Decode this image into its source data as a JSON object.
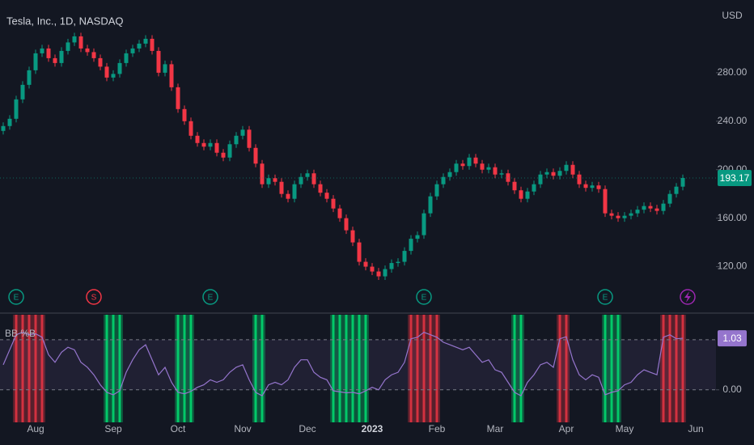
{
  "header": {
    "title": "Tesla, Inc., 1D, NASDAQ",
    "currency": "USD"
  },
  "chart_data": [
    {
      "type": "candlestick",
      "categories": [
        null,
        null,
        null,
        null,
        null,
        "Aug",
        null,
        null,
        null,
        null,
        null,
        null,
        null,
        null,
        null,
        null,
        null,
        "Sep",
        null,
        null,
        null,
        null,
        null,
        null,
        null,
        null,
        null,
        "Oct",
        null,
        null,
        null,
        null,
        null,
        null,
        null,
        null,
        null,
        "Nov",
        null,
        null,
        null,
        null,
        null,
        null,
        null,
        null,
        null,
        "Dec",
        null,
        null,
        null,
        null,
        null,
        null,
        null,
        null,
        null,
        "2023",
        null,
        null,
        null,
        null,
        null,
        null,
        null,
        null,
        null,
        "Feb",
        null,
        null,
        null,
        null,
        null,
        null,
        null,
        null,
        "Mar",
        null,
        null,
        null,
        null,
        null,
        null,
        null,
        null,
        null,
        null,
        "Apr",
        null,
        null,
        null,
        null,
        null,
        null,
        null,
        null,
        "May",
        null,
        null,
        null,
        null,
        null,
        null,
        null,
        null,
        null,
        null,
        "Jun"
      ],
      "open": [
        232,
        236,
        242,
        258,
        270,
        282,
        296,
        300,
        292,
        288,
        298,
        305,
        310,
        300,
        297,
        292,
        285,
        276,
        279,
        288,
        296,
        300,
        304,
        308,
        298,
        280,
        287,
        268,
        250,
        240,
        228,
        222,
        219,
        222,
        214,
        210,
        221,
        228,
        233,
        218,
        205,
        188,
        193,
        190,
        180,
        176,
        188,
        194,
        197,
        188,
        181,
        176,
        168,
        160,
        150,
        140,
        124,
        120,
        116,
        112,
        118,
        123,
        124,
        133,
        143,
        146,
        164,
        178,
        188,
        194,
        198,
        205,
        203,
        210,
        205,
        200,
        202,
        196,
        197,
        190,
        183,
        176,
        182,
        188,
        196,
        198,
        195,
        199,
        204,
        196,
        188,
        185,
        187,
        184,
        164,
        162,
        160,
        162,
        164,
        167,
        170,
        168,
        166,
        172,
        180,
        186,
        null,
        null
      ],
      "high": [
        239,
        245,
        261,
        273,
        285,
        299,
        303,
        303,
        295,
        301,
        308,
        313,
        313,
        303,
        300,
        295,
        288,
        282,
        291,
        299,
        303,
        307,
        311,
        311,
        301,
        290,
        290,
        271,
        253,
        243,
        231,
        225,
        225,
        225,
        217,
        224,
        231,
        236,
        236,
        221,
        208,
        196,
        196,
        193,
        183,
        191,
        197,
        200,
        200,
        191,
        184,
        179,
        171,
        163,
        153,
        143,
        127,
        123,
        119,
        121,
        126,
        127,
        136,
        146,
        149,
        167,
        181,
        191,
        197,
        201,
        208,
        208,
        213,
        213,
        208,
        205,
        205,
        200,
        200,
        193,
        186,
        185,
        191,
        199,
        201,
        201,
        202,
        207,
        207,
        199,
        191,
        190,
        190,
        187,
        167,
        165,
        165,
        167,
        170,
        173,
        173,
        171,
        175,
        183,
        189,
        196,
        null,
        null
      ],
      "low": [
        229,
        233,
        239,
        255,
        267,
        279,
        293,
        289,
        285,
        285,
        295,
        302,
        297,
        294,
        289,
        282,
        273,
        273,
        276,
        285,
        293,
        297,
        301,
        295,
        277,
        277,
        265,
        247,
        237,
        225,
        219,
        216,
        216,
        211,
        207,
        207,
        218,
        225,
        215,
        202,
        185,
        185,
        187,
        177,
        173,
        173,
        185,
        191,
        185,
        178,
        173,
        165,
        157,
        147,
        137,
        121,
        117,
        113,
        109,
        109,
        115,
        120,
        121,
        130,
        140,
        143,
        161,
        175,
        185,
        191,
        195,
        200,
        200,
        202,
        197,
        197,
        193,
        193,
        187,
        180,
        173,
        173,
        179,
        185,
        193,
        192,
        192,
        196,
        193,
        185,
        182,
        182,
        181,
        161,
        159,
        157,
        157,
        159,
        161,
        164,
        165,
        163,
        163,
        169,
        177,
        183,
        null,
        null
      ],
      "close": [
        236,
        242,
        258,
        270,
        282,
        296,
        300,
        292,
        288,
        298,
        305,
        310,
        300,
        297,
        292,
        285,
        276,
        279,
        288,
        296,
        300,
        304,
        308,
        298,
        280,
        287,
        268,
        250,
        240,
        228,
        222,
        219,
        222,
        214,
        210,
        221,
        228,
        233,
        218,
        205,
        188,
        193,
        190,
        180,
        176,
        188,
        194,
        197,
        188,
        181,
        176,
        168,
        160,
        150,
        140,
        124,
        120,
        116,
        112,
        118,
        123,
        124,
        133,
        143,
        146,
        164,
        178,
        188,
        194,
        198,
        205,
        203,
        210,
        205,
        200,
        202,
        196,
        197,
        190,
        183,
        176,
        182,
        188,
        196,
        198,
        195,
        199,
        204,
        196,
        188,
        185,
        187,
        184,
        164,
        162,
        160,
        162,
        164,
        167,
        170,
        168,
        166,
        172,
        180,
        186,
        193.17,
        null,
        null
      ],
      "events": [
        null,
        null,
        "E",
        null,
        null,
        null,
        null,
        null,
        null,
        null,
        null,
        null,
        null,
        null,
        "S",
        null,
        null,
        null,
        null,
        null,
        null,
        null,
        null,
        null,
        null,
        null,
        null,
        null,
        null,
        null,
        null,
        null,
        "E",
        null,
        null,
        null,
        null,
        null,
        null,
        null,
        null,
        null,
        null,
        null,
        null,
        null,
        null,
        null,
        null,
        null,
        null,
        null,
        null,
        null,
        null,
        null,
        null,
        null,
        null,
        null,
        null,
        null,
        null,
        null,
        null,
        "E",
        null,
        null,
        null,
        null,
        null,
        null,
        null,
        null,
        null,
        null,
        null,
        null,
        null,
        null,
        null,
        null,
        null,
        null,
        null,
        null,
        null,
        null,
        null,
        null,
        null,
        null,
        null,
        "E",
        null,
        null,
        null,
        null,
        null,
        null,
        null,
        null,
        null,
        null,
        null,
        null,
        null,
        null
      ],
      "ylim": [
        83,
        340
      ],
      "yticks": [
        {
          "value": 120,
          "label": "120.00"
        },
        {
          "value": 160,
          "label": "160.00"
        },
        {
          "value": 200,
          "label": "200.00"
        },
        {
          "value": 240,
          "label": "240.00"
        },
        {
          "value": 280,
          "label": "280.00"
        }
      ],
      "up_color": "#089981",
      "down_color": "#f23645",
      "grid": false
    },
    {
      "type": "line",
      "title": "BB %B",
      "color": "#9575cd",
      "values": [
        0.5,
        0.8,
        1.1,
        1.15,
        1.1,
        1.12,
        1.05,
        0.7,
        0.55,
        0.75,
        0.85,
        0.8,
        0.55,
        0.45,
        0.3,
        0.1,
        -0.05,
        -0.1,
        -0.02,
        0.35,
        0.6,
        0.8,
        0.9,
        0.6,
        0.3,
        0.45,
        0.15,
        -0.05,
        -0.08,
        -0.03,
        0.05,
        0.1,
        0.2,
        0.15,
        0.2,
        0.35,
        0.45,
        0.5,
        0.2,
        -0.05,
        -0.12,
        0.1,
        0.15,
        0.1,
        0.2,
        0.45,
        0.6,
        0.6,
        0.35,
        0.25,
        0.2,
        -0.02,
        -0.04,
        -0.06,
        -0.05,
        -0.08,
        -0.02,
        0.05,
        0.0,
        0.2,
        0.3,
        0.35,
        0.55,
        1.02,
        1.05,
        1.15,
        1.1,
        1.05,
        0.95,
        0.9,
        0.85,
        0.8,
        0.85,
        0.7,
        0.55,
        0.6,
        0.4,
        0.35,
        0.15,
        -0.05,
        -0.12,
        0.15,
        0.3,
        0.5,
        0.55,
        0.45,
        1.02,
        1.06,
        0.6,
        0.3,
        0.2,
        0.3,
        0.25,
        -0.1,
        -0.05,
        -0.02,
        0.1,
        0.15,
        0.3,
        0.4,
        0.35,
        0.3,
        1.05,
        1.1,
        1.02,
        1.03,
        null,
        null
      ],
      "ylim": [
        -0.65,
        1.5
      ],
      "yticks": [
        {
          "value": 0,
          "label": "0.00"
        }
      ],
      "bands": [
        0,
        1
      ],
      "upper_signal_color": "#f23645",
      "lower_signal_color": "#00e676",
      "grid": false
    }
  ]
}
